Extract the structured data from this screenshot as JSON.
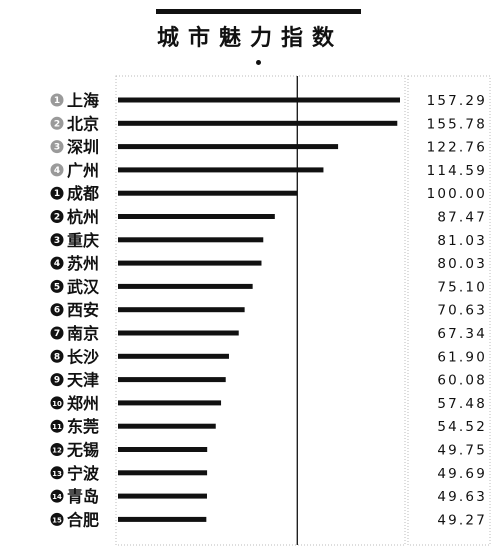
{
  "chart_data": {
    "type": "bar",
    "orientation": "horizontal",
    "title": "城市魅力指数",
    "categories": [
      "上海",
      "北京",
      "深圳",
      "广州",
      "成都",
      "杭州",
      "重庆",
      "苏州",
      "武汉",
      "西安",
      "南京",
      "长沙",
      "天津",
      "郑州",
      "东莞",
      "无锡",
      "宁波",
      "青岛",
      "合肥"
    ],
    "ranks": [
      "1",
      "2",
      "3",
      "4",
      "1",
      "2",
      "3",
      "4",
      "5",
      "6",
      "7",
      "8",
      "9",
      "10",
      "11",
      "12",
      "13",
      "14",
      "15"
    ],
    "values": [
      157.29,
      155.78,
      122.76,
      114.59,
      100.0,
      87.47,
      81.03,
      80.03,
      75.1,
      70.63,
      67.34,
      61.9,
      60.08,
      57.48,
      54.52,
      49.75,
      49.69,
      49.63,
      49.27
    ],
    "value_labels": [
      "157.29",
      "155.78",
      "122.76",
      "114.59",
      "100.00",
      "87.47",
      "81.03",
      "80.03",
      "75.10",
      "70.63",
      "67.34",
      "61.90",
      "60.08",
      "57.48",
      "54.52",
      "49.75",
      "49.69",
      "49.63",
      "49.27"
    ],
    "reference_value": 100,
    "xlim": [
      0,
      157.29
    ],
    "grid": false,
    "colors": {
      "bar": "#111111",
      "badge_top": "#9a9a9a",
      "badge_rest": "#111111",
      "reference_line": "#111111",
      "frame": "#bbbbbb"
    }
  }
}
